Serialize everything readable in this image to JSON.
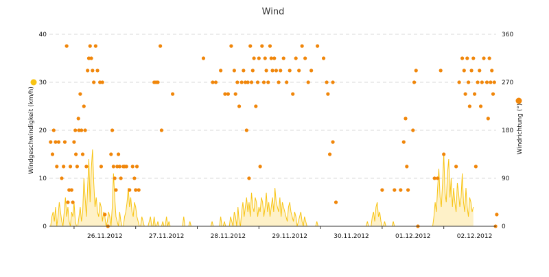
{
  "chart_data": {
    "type": "line",
    "title": "Wind",
    "x_tick_labels": [
      "26.11.2012",
      "27.11.2012",
      "28.11.2012",
      "29.11.2012",
      "30.11.2012",
      "01.12.2012",
      "02.12.2012"
    ],
    "x_range_days": [
      25.6,
      32.85
    ],
    "left_axis": {
      "label": "Windgeschwindigkeit (km/h)",
      "ticks": [
        "0",
        "10",
        "20",
        "30",
        "40"
      ],
      "ylim": [
        0,
        40
      ]
    },
    "right_axis": {
      "label": "Windrichtung (°)",
      "ticks": [
        "0",
        "90",
        "180",
        "270",
        "360"
      ],
      "ylim": [
        0,
        360
      ]
    },
    "grid": true,
    "series": [
      {
        "name": "Windgeschwindigkeit",
        "type": "area",
        "color": "#f8c414",
        "axis": "left",
        "x_start": 25.62,
        "x_step": 0.02,
        "values": [
          0,
          2,
          3,
          1,
          4,
          0,
          2,
          5,
          3,
          1,
          0,
          3,
          6,
          2,
          4,
          1,
          0,
          3,
          2,
          5,
          1,
          0,
          0,
          2,
          4,
          1,
          3,
          10,
          6,
          2,
          8,
          14,
          5,
          12,
          16,
          9,
          4,
          6,
          3,
          2,
          5,
          4,
          1,
          3,
          2,
          0,
          1,
          3,
          2,
          0,
          4,
          11,
          6,
          2,
          1,
          0,
          3,
          1,
          0,
          0,
          2,
          3,
          5,
          8,
          4,
          6,
          3,
          2,
          5,
          4,
          2,
          1,
          0,
          0,
          2,
          1,
          0,
          0,
          0,
          0,
          1,
          2,
          0,
          0,
          2,
          0,
          0,
          1,
          0,
          0,
          0,
          1,
          0,
          0,
          2,
          0,
          1,
          0,
          0,
          0,
          0,
          0,
          0,
          0,
          0,
          0,
          0,
          0,
          2,
          0,
          0,
          0,
          0,
          1,
          0,
          0,
          0,
          0,
          0,
          0,
          0,
          0,
          0,
          0,
          0,
          0,
          0,
          0,
          0,
          0,
          0,
          1,
          0,
          0,
          0,
          0,
          0,
          0,
          2,
          0,
          0,
          1,
          0,
          0,
          0,
          0,
          2,
          1,
          0,
          3,
          2,
          0,
          4,
          1,
          0,
          3,
          5,
          2,
          4,
          6,
          3,
          5,
          2,
          7,
          4,
          3,
          6,
          5,
          2,
          4,
          3,
          6,
          5,
          2,
          4,
          7,
          3,
          5,
          2,
          4,
          6,
          3,
          8,
          5,
          4,
          3,
          6,
          2,
          5,
          4,
          3,
          2,
          1,
          4,
          5,
          3,
          2,
          1,
          3,
          2,
          0,
          1,
          2,
          3,
          1,
          0,
          2,
          1,
          0,
          0,
          0,
          0,
          0,
          0,
          0,
          0,
          1,
          0,
          0,
          0,
          0,
          0,
          0,
          0,
          0,
          0,
          0,
          0,
          0,
          0,
          0,
          0,
          0,
          0,
          0,
          0,
          0,
          0,
          0,
          0,
          0,
          0,
          0,
          0,
          0,
          0,
          0,
          0,
          0,
          0,
          0,
          0,
          0,
          0,
          0,
          0,
          0,
          1,
          0,
          0,
          0,
          2,
          3,
          1,
          4,
          5,
          2,
          3,
          1,
          0,
          0,
          1,
          0,
          0,
          0,
          0,
          0,
          0,
          1,
          0,
          0,
          0,
          0,
          0,
          0,
          0,
          0,
          0,
          0,
          0,
          0,
          0,
          0,
          0,
          0,
          0,
          0,
          0,
          0,
          0,
          0,
          0,
          0,
          0,
          0,
          0,
          0,
          0,
          0,
          0,
          0,
          2,
          5,
          3,
          8,
          12,
          6,
          4,
          9,
          15,
          7,
          5,
          11,
          14,
          6,
          10,
          4,
          8,
          5,
          3,
          9,
          7,
          4,
          6,
          11,
          5,
          3,
          8,
          4,
          2,
          6,
          5,
          3,
          4
        ]
      },
      {
        "name": "Windrichtung",
        "type": "scatter",
        "color": "#f0860a",
        "axis": "right",
        "points": [
          [
            25.62,
            158
          ],
          [
            25.65,
            135
          ],
          [
            25.67,
            180
          ],
          [
            25.7,
            158
          ],
          [
            25.72,
            112
          ],
          [
            25.75,
            158
          ],
          [
            25.8,
            90
          ],
          [
            25.83,
            112
          ],
          [
            25.85,
            158
          ],
          [
            25.88,
            338
          ],
          [
            25.9,
            45
          ],
          [
            25.92,
            68
          ],
          [
            25.94,
            112
          ],
          [
            25.96,
            68
          ],
          [
            25.98,
            45
          ],
          [
            26.0,
            158
          ],
          [
            26.02,
            180
          ],
          [
            26.03,
            135
          ],
          [
            26.05,
            112
          ],
          [
            26.07,
            202
          ],
          [
            26.08,
            180
          ],
          [
            26.1,
            248
          ],
          [
            26.12,
            180
          ],
          [
            26.14,
            135
          ],
          [
            26.16,
            225
          ],
          [
            26.18,
            180
          ],
          [
            26.2,
            112
          ],
          [
            26.22,
            292
          ],
          [
            26.24,
            315
          ],
          [
            26.26,
            338
          ],
          [
            26.28,
            315
          ],
          [
            26.3,
            292
          ],
          [
            26.32,
            270
          ],
          [
            26.35,
            338
          ],
          [
            26.38,
            292
          ],
          [
            26.42,
            270
          ],
          [
            26.44,
            112
          ],
          [
            26.46,
            270
          ],
          [
            26.5,
            22
          ],
          [
            26.55,
            0
          ],
          [
            26.6,
            135
          ],
          [
            26.62,
            180
          ],
          [
            26.64,
            112
          ],
          [
            26.66,
            90
          ],
          [
            26.68,
            68
          ],
          [
            26.7,
            112
          ],
          [
            26.72,
            135
          ],
          [
            26.74,
            112
          ],
          [
            26.76,
            90
          ],
          [
            26.8,
            112
          ],
          [
            26.82,
            112
          ],
          [
            26.85,
            112
          ],
          [
            26.9,
            68
          ],
          [
            26.95,
            112
          ],
          [
            26.98,
            90
          ],
          [
            27.0,
            68
          ],
          [
            27.02,
            112
          ],
          [
            27.05,
            68
          ],
          [
            27.3,
            270
          ],
          [
            27.33,
            270
          ],
          [
            27.36,
            270
          ],
          [
            27.4,
            338
          ],
          [
            27.42,
            180
          ],
          [
            27.6,
            248
          ],
          [
            28.1,
            315
          ],
          [
            28.25,
            270
          ],
          [
            28.3,
            270
          ],
          [
            28.38,
            292
          ],
          [
            28.45,
            248
          ],
          [
            28.5,
            248
          ],
          [
            28.55,
            338
          ],
          [
            28.6,
            292
          ],
          [
            28.62,
            248
          ],
          [
            28.65,
            270
          ],
          [
            28.68,
            225
          ],
          [
            28.72,
            270
          ],
          [
            28.75,
            292
          ],
          [
            28.78,
            270
          ],
          [
            28.8,
            180
          ],
          [
            28.82,
            270
          ],
          [
            28.84,
            90
          ],
          [
            28.86,
            338
          ],
          [
            28.88,
            270
          ],
          [
            28.9,
            292
          ],
          [
            28.92,
            315
          ],
          [
            28.95,
            225
          ],
          [
            28.98,
            270
          ],
          [
            29.0,
            315
          ],
          [
            29.02,
            112
          ],
          [
            29.05,
            338
          ],
          [
            29.08,
            270
          ],
          [
            29.1,
            315
          ],
          [
            29.12,
            292
          ],
          [
            29.15,
            270
          ],
          [
            29.18,
            338
          ],
          [
            29.2,
            315
          ],
          [
            29.22,
            292
          ],
          [
            29.25,
            315
          ],
          [
            29.28,
            292
          ],
          [
            29.32,
            270
          ],
          [
            29.35,
            292
          ],
          [
            29.4,
            315
          ],
          [
            29.45,
            270
          ],
          [
            29.5,
            292
          ],
          [
            29.55,
            248
          ],
          [
            29.6,
            315
          ],
          [
            29.65,
            292
          ],
          [
            29.7,
            338
          ],
          [
            29.75,
            315
          ],
          [
            29.8,
            270
          ],
          [
            29.85,
            292
          ],
          [
            29.95,
            338
          ],
          [
            30.05,
            315
          ],
          [
            30.1,
            270
          ],
          [
            30.12,
            248
          ],
          [
            30.15,
            135
          ],
          [
            30.2,
            158
          ],
          [
            30.25,
            45
          ],
          [
            30.2,
            270
          ],
          [
            31.0,
            68
          ],
          [
            31.2,
            68
          ],
          [
            31.3,
            68
          ],
          [
            31.35,
            158
          ],
          [
            31.38,
            202
          ],
          [
            31.4,
            112
          ],
          [
            31.42,
            68
          ],
          [
            31.5,
            180
          ],
          [
            31.52,
            270
          ],
          [
            31.55,
            292
          ],
          [
            31.58,
            0
          ],
          [
            31.85,
            90
          ],
          [
            31.9,
            90
          ],
          [
            31.95,
            292
          ],
          [
            32.0,
            135
          ],
          [
            32.2,
            112
          ],
          [
            32.25,
            270
          ],
          [
            32.3,
            315
          ],
          [
            32.33,
            292
          ],
          [
            32.35,
            248
          ],
          [
            32.38,
            315
          ],
          [
            32.4,
            270
          ],
          [
            32.42,
            225
          ],
          [
            32.45,
            292
          ],
          [
            32.48,
            315
          ],
          [
            32.5,
            248
          ],
          [
            32.52,
            112
          ],
          [
            32.55,
            270
          ],
          [
            32.58,
            292
          ],
          [
            32.6,
            225
          ],
          [
            32.62,
            270
          ],
          [
            32.65,
            315
          ],
          [
            32.7,
            270
          ],
          [
            32.72,
            202
          ],
          [
            32.74,
            315
          ],
          [
            32.76,
            270
          ],
          [
            32.78,
            292
          ],
          [
            32.8,
            248
          ],
          [
            32.82,
            270
          ],
          [
            32.84,
            0
          ],
          [
            32.86,
            22
          ]
        ]
      }
    ]
  }
}
